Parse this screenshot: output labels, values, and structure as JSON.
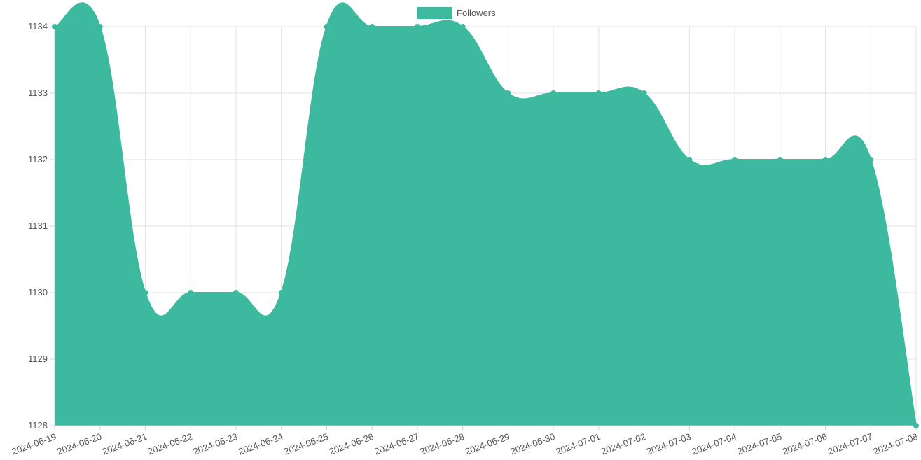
{
  "chart_data": {
    "type": "area",
    "x": [
      "2024-06-19",
      "2024-06-20",
      "2024-06-21",
      "2024-06-22",
      "2024-06-23",
      "2024-06-24",
      "2024-06-25",
      "2024-06-26",
      "2024-06-27",
      "2024-06-28",
      "2024-06-29",
      "2024-06-30",
      "2024-07-01",
      "2024-07-02",
      "2024-07-03",
      "2024-07-04",
      "2024-07-05",
      "2024-07-06",
      "2024-07-07",
      "2024-07-08"
    ],
    "series": [
      {
        "name": "Followers",
        "values": [
          1134,
          1134,
          1130,
          1130,
          1130,
          1130,
          1134,
          1134,
          1134,
          1134,
          1133,
          1133,
          1133,
          1133,
          1132,
          1132,
          1132,
          1132,
          1132,
          1128
        ],
        "color": "#3cb99e"
      }
    ],
    "yticks": [
      1128,
      1129,
      1130,
      1131,
      1132,
      1133,
      1134
    ],
    "ylim": [
      1128,
      1134
    ],
    "grid": true,
    "legend_position": "top-center",
    "title": "",
    "xlabel": "",
    "ylabel": ""
  }
}
